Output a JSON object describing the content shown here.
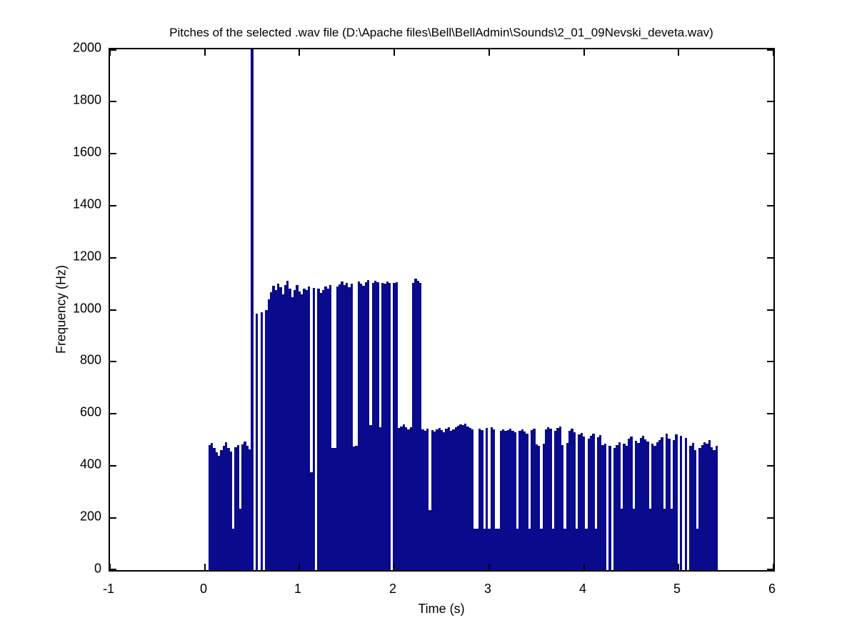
{
  "figure": {
    "background": "#ffffff"
  },
  "chart_data": {
    "type": "bar",
    "title": "Pitches of the selected .wav file (D:\\Apache files\\Bell\\BellAdmin\\Sounds\\2_01_09Nevski_deveta.wav)",
    "xlabel": "Time (s)",
    "ylabel": "Frequency (Hz)",
    "xlim": [
      -1,
      6
    ],
    "ylim": [
      0,
      2000
    ],
    "x_ticks": [
      -1,
      0,
      1,
      2,
      3,
      4,
      5,
      6
    ],
    "y_ticks": [
      0,
      200,
      400,
      600,
      800,
      1000,
      1200,
      1400,
      1600,
      1800,
      2000
    ],
    "grid": false,
    "legend": null,
    "bar_color": "#0a0a8c",
    "axis_color": "#000000",
    "t_start": 0.05,
    "dt": 0.025,
    "values": [
      480,
      488,
      470,
      452,
      440,
      462,
      478,
      492,
      470,
      455,
      160,
      472,
      480,
      237,
      482,
      494,
      478,
      465,
      2000,
      0,
      985,
      0,
      990,
      0,
      998,
      1040,
      1068,
      1092,
      1075,
      1100,
      1086,
      1058,
      1096,
      1110,
      1080,
      1048,
      1075,
      1096,
      1070,
      1058,
      1082,
      1075,
      1090,
      377,
      1085,
      0,
      1080,
      1064,
      1076,
      1090,
      1082,
      1094,
      470,
      470,
      1088,
      1098,
      1108,
      1094,
      1104,
      1086,
      1100,
      475,
      478,
      1108,
      1100,
      1092,
      1106,
      1115,
      556,
      1102,
      1110,
      1106,
      550,
      1104,
      1100,
      1108,
      1104,
      0,
      1102,
      1106,
      546,
      552,
      560,
      548,
      540,
      550,
      1104,
      1120,
      1112,
      1104,
      540,
      534,
      544,
      230,
      538,
      532,
      540,
      546,
      538,
      530,
      542,
      548,
      536,
      540,
      548,
      554,
      560,
      556,
      562,
      552,
      546,
      540,
      160,
      160,
      544,
      538,
      160,
      545,
      160,
      548,
      540,
      160,
      160,
      536,
      540,
      534,
      538,
      542,
      536,
      530,
      160,
      534,
      540,
      532,
      525,
      160,
      538,
      544,
      482,
      478,
      160,
      486,
      540,
      548,
      542,
      160,
      536,
      545,
      552,
      480,
      160,
      488,
      536,
      542,
      530,
      160,
      520,
      528,
      512,
      160,
      506,
      516,
      524,
      160,
      510,
      518,
      480,
      486,
      0,
      478,
      0,
      470,
      480,
      492,
      235,
      486,
      478,
      504,
      512,
      235,
      496,
      488,
      508,
      515,
      502,
      494,
      235,
      486,
      478,
      490,
      498,
      510,
      235,
      524,
      506,
      235,
      498,
      520,
      0,
      516,
      0,
      508,
      0,
      478,
      488,
      462,
      160,
      470,
      480,
      492,
      486,
      498,
      472,
      460,
      478
    ]
  }
}
